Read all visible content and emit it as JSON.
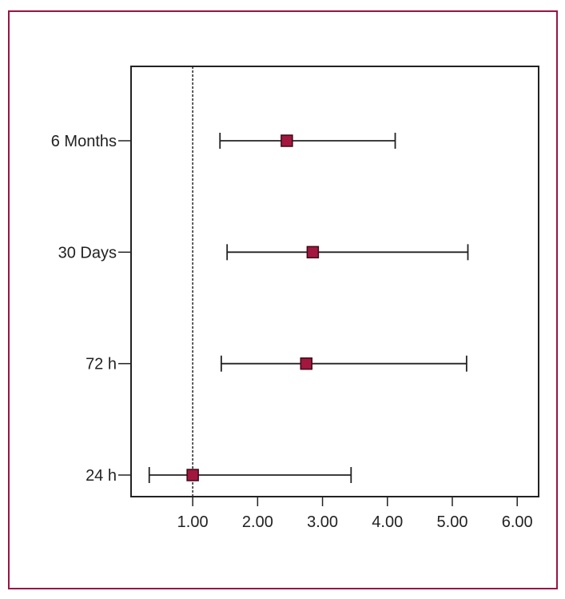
{
  "chart_data": {
    "type": "forest",
    "categories": [
      "24 h",
      "72 h",
      "30 Days",
      "6 Months"
    ],
    "series": [
      {
        "estimates": [
          1.0,
          2.75,
          2.85,
          2.45
        ],
        "lower": [
          0.33,
          1.44,
          1.53,
          1.42
        ],
        "upper": [
          3.44,
          5.22,
          5.24,
          4.12
        ]
      }
    ],
    "xticks": [
      1.0,
      2.0,
      3.0,
      4.0,
      5.0,
      6.0
    ],
    "xtick_labels": [
      "1.00",
      "2.00",
      "3.00",
      "4.00",
      "5.00",
      "6.00"
    ],
    "xlim": [
      0.05,
      6.33
    ],
    "reference_line": 1.0,
    "title": "",
    "xlabel": "",
    "ylabel": ""
  },
  "colors": {
    "frame_border": "#9a1442",
    "marker_fill": "#a3173f",
    "marker_stroke": "#3a0a18",
    "line": "#222222"
  }
}
